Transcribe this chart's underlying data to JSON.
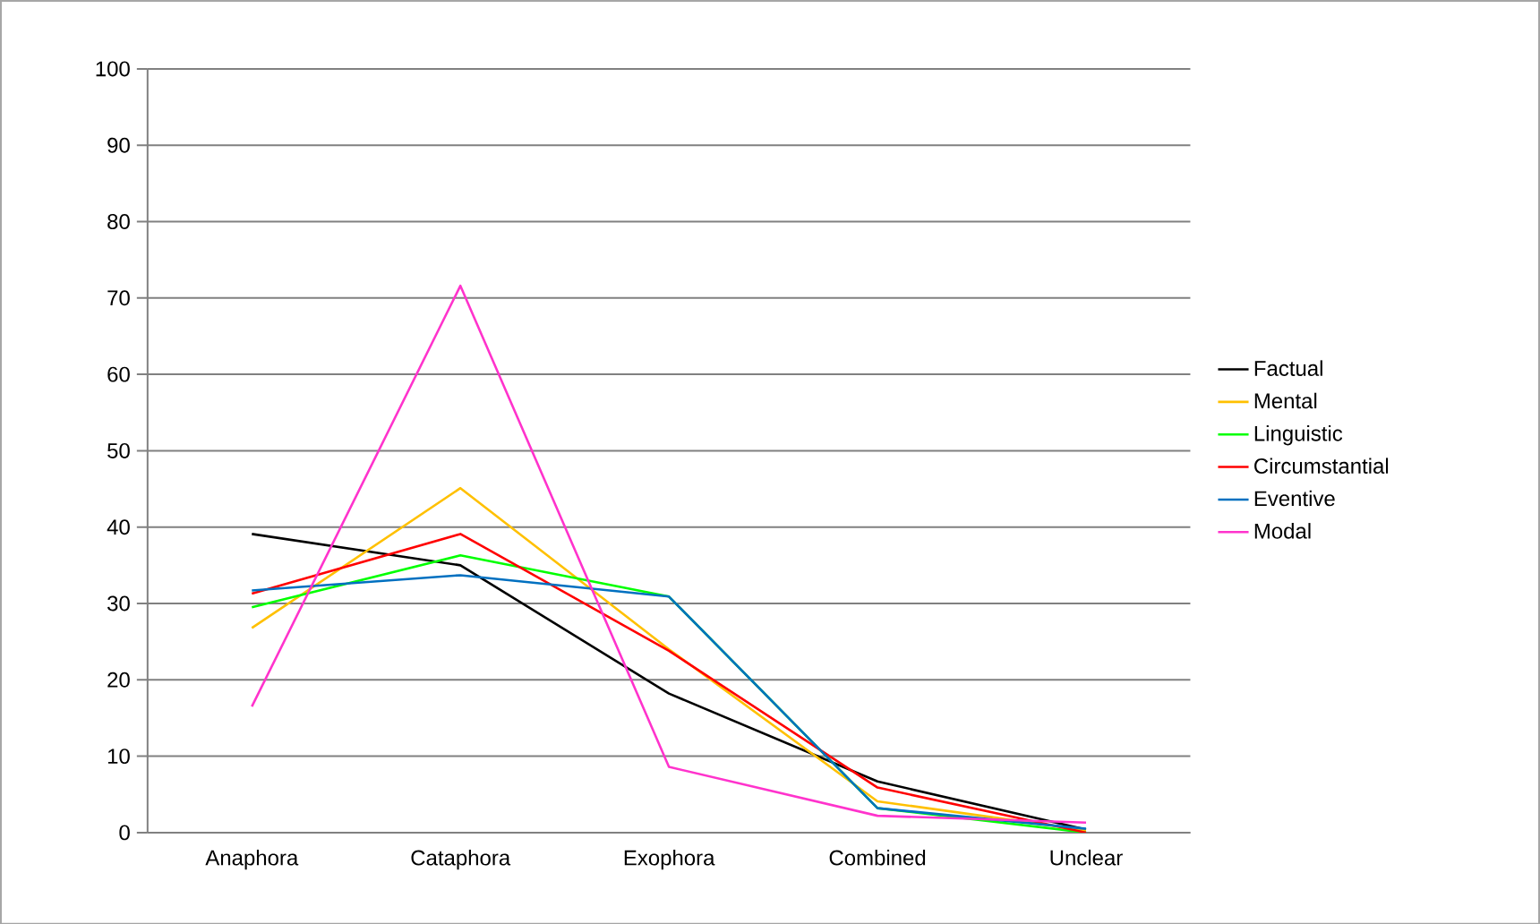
{
  "chart_data": {
    "type": "line",
    "categories": [
      "Anaphora",
      "Cataphora",
      "Exophora",
      "Combined",
      "Unclear"
    ],
    "ylim": [
      0,
      100
    ],
    "yticks": [
      0,
      10,
      20,
      30,
      40,
      50,
      60,
      70,
      80,
      90,
      100
    ],
    "grid": "y",
    "legend": "right",
    "marker": "none",
    "series": [
      {
        "name": "Factual",
        "color": "#000000",
        "values": [
          39.1,
          35,
          18.2,
          6.7,
          0.4
        ]
      },
      {
        "name": "Mental",
        "color": "#ffc000",
        "values": [
          26.8,
          45.1,
          24,
          4.1,
          0.3
        ]
      },
      {
        "name": "Linguistic",
        "color": "#00ff00",
        "values": [
          29.5,
          36.3,
          30.9,
          3.2,
          0
        ]
      },
      {
        "name": "Circumstantial",
        "color": "#ff0000",
        "values": [
          31.3,
          39.1,
          23.8,
          5.9,
          0
        ]
      },
      {
        "name": "Eventive",
        "color": "#0070c0",
        "values": [
          31.7,
          33.7,
          30.9,
          3.2,
          0.5
        ]
      },
      {
        "name": "Modal",
        "color": "#ff33cc",
        "values": [
          16.5,
          71.6,
          8.6,
          2.2,
          1.3
        ]
      }
    ]
  }
}
